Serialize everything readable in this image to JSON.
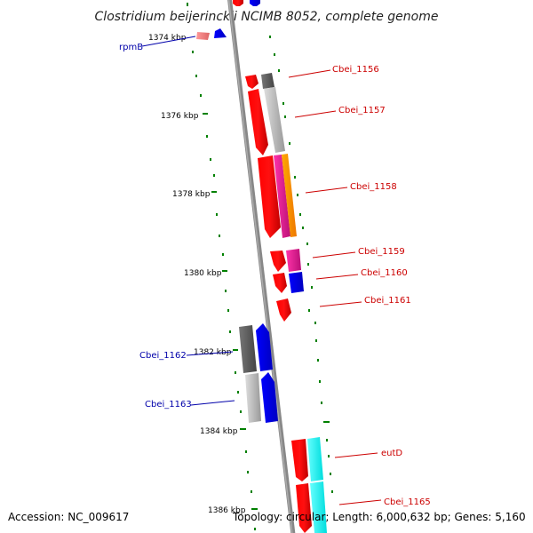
{
  "title": "Clostridium beijerinckii NCIMB 8052, complete genome",
  "footer": {
    "accession": "Accession: NC_009617",
    "summary": "Topology: circular; Length: 6,000,632 bp; Genes: 5,160"
  },
  "scale_labels": [
    "1374 kbp",
    "1376 kbp",
    "1378 kbp",
    "1380 kbp",
    "1382 kbp",
    "1384 kbp",
    "1386 kbp"
  ],
  "gene_labels": {
    "rpmB": "rpmB",
    "cbei_1156": "Cbei_1156",
    "cbei_1157": "Cbei_1157",
    "cbei_1158": "Cbei_1158",
    "cbei_1159": "Cbei_1159",
    "cbei_1160": "Cbei_1160",
    "cbei_1161": "Cbei_1161",
    "cbei_1162": "Cbei_1162",
    "cbei_1163": "Cbei_1163",
    "eutD": "eutD",
    "cbei_1165": "Cbei_1165"
  },
  "colors": {
    "backbone": "#808080",
    "gene_red": "#ff0000",
    "gene_blue": "#0000ff",
    "gene_magenta": "#ee2299",
    "gene_orange": "#ff8800",
    "gene_cyan": "#00ffff",
    "gene_gray": "#aaaaaa",
    "gene_darkgray": "#555555",
    "tick_green": "#008000",
    "label_red": "#cc0000",
    "label_blue": "#0000aa"
  }
}
